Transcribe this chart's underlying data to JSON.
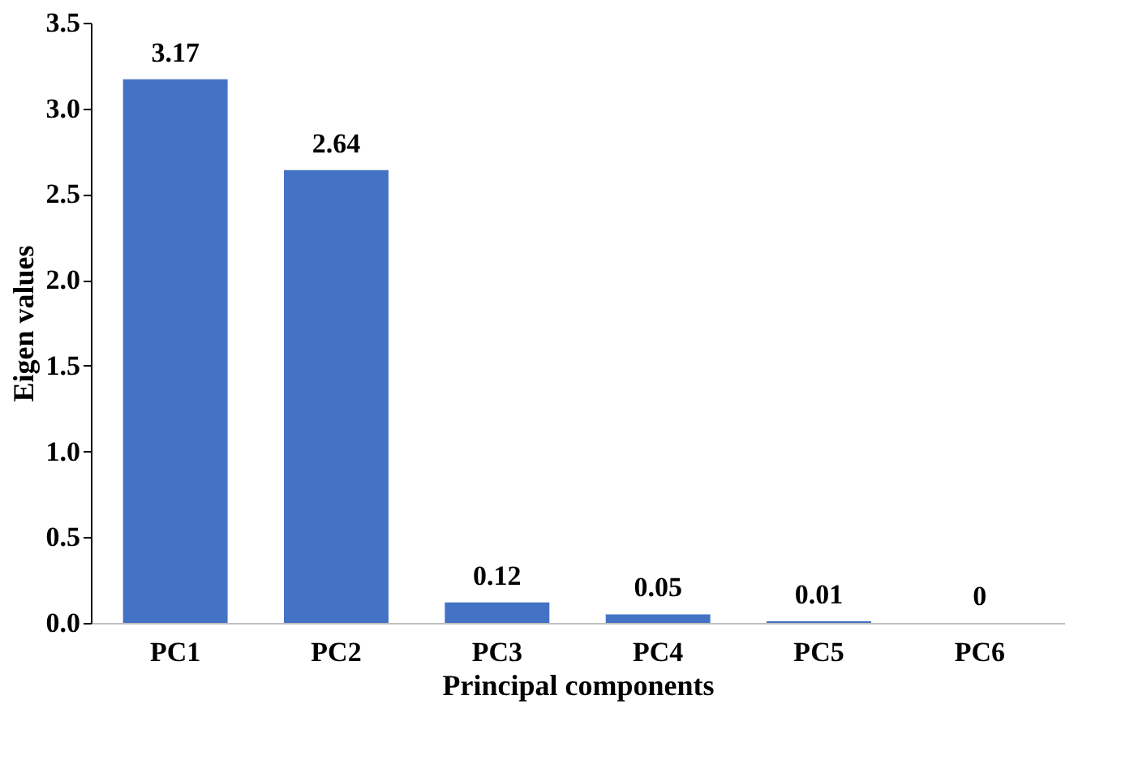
{
  "chart_data": {
    "type": "bar",
    "xlabel": "Principal components",
    "ylabel": "Eigen values",
    "categories": [
      "PC1",
      "PC2",
      "PC3",
      "PC4",
      "PC5",
      "PC6"
    ],
    "values": [
      3.17,
      2.64,
      0.12,
      0.05,
      0.01,
      0
    ],
    "color": "#4472c4",
    "ylim": [
      0,
      3.5
    ],
    "yticks": [
      {
        "value": 0,
        "label": "0.0"
      },
      {
        "value": 0.5,
        "label": "0.5"
      },
      {
        "value": 1,
        "label": "1.0"
      },
      {
        "value": 1.5,
        "label": "1.5"
      },
      {
        "value": 2,
        "label": "2.0"
      },
      {
        "value": 2.5,
        "label": "2.5"
      },
      {
        "value": 3,
        "label": "3.0"
      },
      {
        "value": 3.5,
        "label": "3.5"
      }
    ],
    "data_labels": true,
    "grid": false
  }
}
